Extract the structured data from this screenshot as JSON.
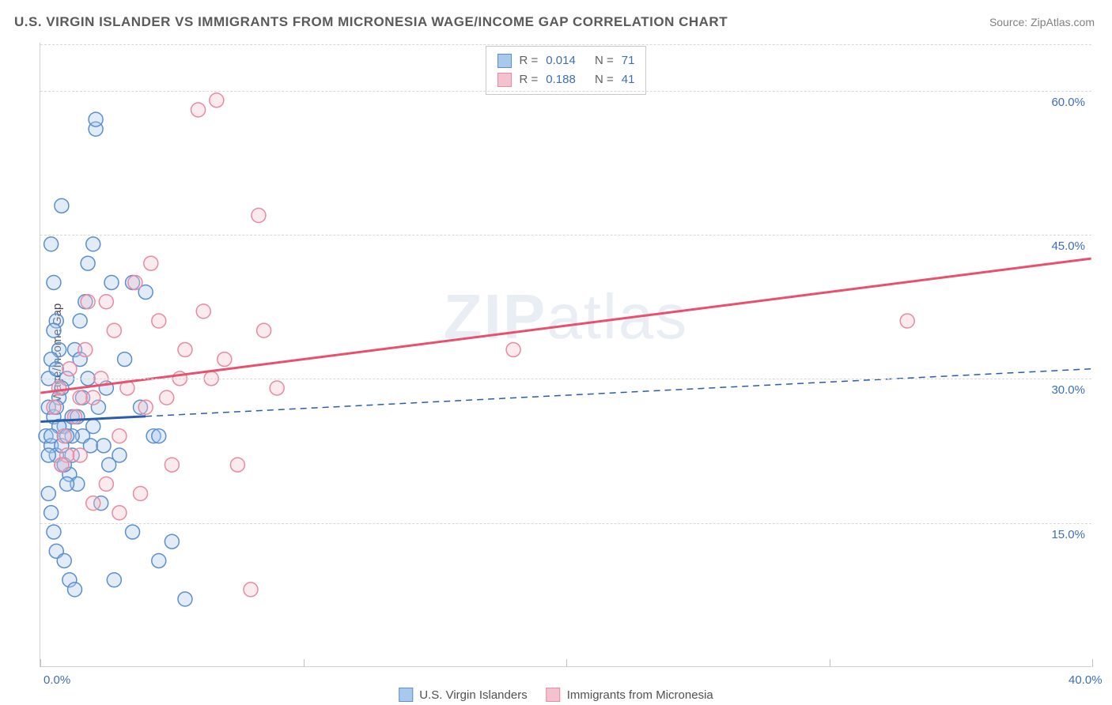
{
  "title": "U.S. VIRGIN ISLANDER VS IMMIGRANTS FROM MICRONESIA WAGE/INCOME GAP CORRELATION CHART",
  "source": "Source: ZipAtlas.com",
  "watermark_part1": "ZIP",
  "watermark_part2": "atlas",
  "y_axis_label": "Wage/Income Gap",
  "chart": {
    "type": "scatter-correlation",
    "background_color": "#ffffff",
    "grid_color": "#d8d8d8",
    "axis_color": "#d0d0d0",
    "tick_label_color": "#3b6fb6",
    "text_color": "#5a5a5a",
    "xlim": [
      0,
      40
    ],
    "ylim": [
      0,
      65
    ],
    "x_ticks": [
      {
        "v": 0,
        "label": "0.0%"
      },
      {
        "v": 10,
        "label": ""
      },
      {
        "v": 20,
        "label": ""
      },
      {
        "v": 30,
        "label": ""
      },
      {
        "v": 40,
        "label": "40.0%"
      }
    ],
    "y_ticks": [
      {
        "v": 15,
        "label": "15.0%"
      },
      {
        "v": 30,
        "label": "30.0%"
      },
      {
        "v": 45,
        "label": "45.0%"
      },
      {
        "v": 60,
        "label": "60.0%"
      }
    ],
    "marker_radius": 9,
    "marker_stroke_width": 1.5,
    "marker_fill_opacity": 0.35
  },
  "series": {
    "a": {
      "name": "U.S. Virgin Islanders",
      "color_fill": "#a8c8ec",
      "color_stroke": "#5a8fcf",
      "line_color": "#2a5da8",
      "line_width": 3,
      "dash_solid_until_x": 4,
      "trend_start_y": 25.5,
      "trend_end_y": 31.0,
      "R_label": "R =",
      "R_value": "0.014",
      "N_label": "N =",
      "N_value": "71",
      "points": [
        [
          0.2,
          24
        ],
        [
          0.3,
          27
        ],
        [
          0.4,
          23
        ],
        [
          0.5,
          26
        ],
        [
          0.6,
          22
        ],
        [
          0.7,
          28
        ],
        [
          0.8,
          21
        ],
        [
          0.9,
          25
        ],
        [
          1.0,
          30
        ],
        [
          1.1,
          20
        ],
        [
          1.2,
          26
        ],
        [
          1.3,
          33
        ],
        [
          1.4,
          19
        ],
        [
          1.5,
          36
        ],
        [
          1.6,
          24
        ],
        [
          1.7,
          38
        ],
        [
          1.8,
          42
        ],
        [
          1.9,
          23
        ],
        [
          2.0,
          44
        ],
        [
          2.1,
          56
        ],
        [
          2.3,
          17
        ],
        [
          2.5,
          29
        ],
        [
          2.7,
          40
        ],
        [
          3.0,
          22
        ],
        [
          3.2,
          32
        ],
        [
          3.5,
          14
        ],
        [
          3.8,
          27
        ],
        [
          4.0,
          39
        ],
        [
          4.3,
          24
        ],
        [
          4.5,
          11
        ],
        [
          5.0,
          13
        ],
        [
          5.5,
          7
        ],
        [
          0.4,
          44
        ],
        [
          0.5,
          40
        ],
        [
          0.6,
          36
        ],
        [
          0.7,
          33
        ],
        [
          0.8,
          48
        ],
        [
          0.6,
          27
        ],
        [
          0.7,
          25
        ],
        [
          0.8,
          23
        ],
        [
          0.9,
          21
        ],
        [
          1.0,
          19
        ],
        [
          0.3,
          18
        ],
        [
          0.4,
          16
        ],
        [
          0.5,
          14
        ],
        [
          0.6,
          12
        ],
        [
          1.2,
          24
        ],
        [
          1.4,
          26
        ],
        [
          1.6,
          28
        ],
        [
          1.8,
          30
        ],
        [
          2.0,
          25
        ],
        [
          2.2,
          27
        ],
        [
          2.4,
          23
        ],
        [
          2.6,
          21
        ],
        [
          0.3,
          30
        ],
        [
          0.4,
          32
        ],
        [
          0.5,
          35
        ],
        [
          0.3,
          22
        ],
        [
          0.4,
          24
        ],
        [
          2.1,
          57
        ],
        [
          0.9,
          11
        ],
        [
          1.1,
          9
        ],
        [
          1.3,
          8
        ],
        [
          2.8,
          9
        ],
        [
          4.5,
          24
        ],
        [
          3.5,
          40
        ],
        [
          1.5,
          32
        ],
        [
          0.8,
          29
        ],
        [
          0.6,
          31
        ],
        [
          1.0,
          24
        ],
        [
          1.2,
          22
        ]
      ]
    },
    "b": {
      "name": "Immigrants from Micronesia",
      "color_fill": "#f4c2ce",
      "color_stroke": "#e88aa0",
      "line_color": "#e8506e",
      "line_width": 3,
      "trend_start_y": 28.5,
      "trend_end_y": 42.5,
      "R_label": "R =",
      "R_value": "0.188",
      "N_label": "N =",
      "N_value": "41",
      "points": [
        [
          0.5,
          27
        ],
        [
          0.7,
          29
        ],
        [
          0.9,
          24
        ],
        [
          1.1,
          31
        ],
        [
          1.3,
          26
        ],
        [
          1.5,
          22
        ],
        [
          1.7,
          33
        ],
        [
          2.0,
          28
        ],
        [
          2.3,
          30
        ],
        [
          2.5,
          19
        ],
        [
          2.8,
          35
        ],
        [
          3.0,
          24
        ],
        [
          3.3,
          29
        ],
        [
          3.6,
          40
        ],
        [
          4.0,
          27
        ],
        [
          4.5,
          36
        ],
        [
          5.0,
          21
        ],
        [
          5.5,
          33
        ],
        [
          6.0,
          58
        ],
        [
          6.2,
          37
        ],
        [
          6.7,
          59
        ],
        [
          7.0,
          32
        ],
        [
          7.5,
          21
        ],
        [
          8.0,
          8
        ],
        [
          8.3,
          47
        ],
        [
          8.5,
          35
        ],
        [
          9.0,
          29
        ],
        [
          4.2,
          42
        ],
        [
          3.8,
          18
        ],
        [
          3.0,
          16
        ],
        [
          2.5,
          38
        ],
        [
          2.0,
          17
        ],
        [
          1.8,
          38
        ],
        [
          1.5,
          28
        ],
        [
          1.0,
          22
        ],
        [
          0.8,
          21
        ],
        [
          18.0,
          33
        ],
        [
          33.0,
          36
        ],
        [
          6.5,
          30
        ],
        [
          4.8,
          28
        ],
        [
          5.3,
          30
        ]
      ]
    }
  }
}
